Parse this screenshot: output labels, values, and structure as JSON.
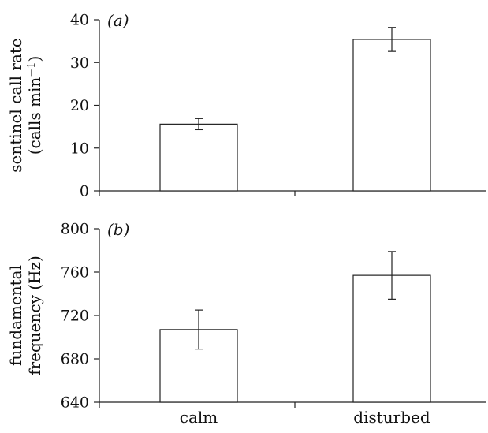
{
  "chart_data": [
    {
      "type": "bar",
      "panel_tag": "(a)",
      "categories": [
        "calm",
        "disturbed"
      ],
      "values": [
        15.6,
        35.4
      ],
      "error": [
        1.3,
        2.8
      ],
      "ylabel_line1": "sentinel call rate",
      "ylabel_line2_main": "(calls min",
      "ylabel_line2_sup": "−1",
      "ylabel_line2_end": ")",
      "ylim": [
        0,
        40
      ],
      "yticks": [
        0,
        10,
        20,
        30,
        40
      ],
      "grid": false
    },
    {
      "type": "bar",
      "panel_tag": "(b)",
      "categories": [
        "calm",
        "disturbed"
      ],
      "values": [
        707,
        757
      ],
      "error": [
        18,
        22
      ],
      "ylabel_line1": "fundamental",
      "ylabel_line2": "frequency (Hz)",
      "ylim": [
        640,
        800
      ],
      "yticks": [
        640,
        680,
        720,
        760,
        800
      ],
      "grid": false
    }
  ],
  "xaxis": {
    "categories": [
      "calm",
      "disturbed"
    ]
  }
}
